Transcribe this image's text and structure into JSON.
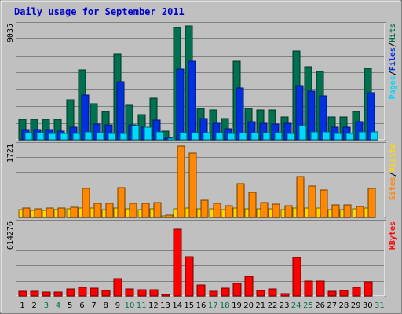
{
  "title": "Daily usage for September 2011",
  "colors": {
    "background": "#c0c0c0",
    "title": "#0000cc",
    "hits": "#007050",
    "files": "#0030e0",
    "pages": "#00d8ff",
    "visits": "#ffd800",
    "sites": "#ff8800",
    "kbytes": "#ff0000",
    "weekend_label": "#007050",
    "weekday_label": "#000000"
  },
  "chart_data": [
    {
      "type": "bar",
      "panel": "hits-files-pages",
      "ymax_label": "9035",
      "ymax": 9035,
      "legend": [
        {
          "key": "pages",
          "label": "Pages"
        },
        {
          "key": "sep1",
          "label": "/"
        },
        {
          "key": "files",
          "label": "Files"
        },
        {
          "key": "sep2",
          "label": "/"
        },
        {
          "key": "hits",
          "label": "Hits"
        }
      ],
      "categories": [
        "1",
        "2",
        "3",
        "4",
        "5",
        "6",
        "7",
        "8",
        "9",
        "10",
        "11",
        "12",
        "13",
        "14",
        "15",
        "16",
        "17",
        "18",
        "19",
        "20",
        "21",
        "22",
        "23",
        "24",
        "25",
        "26",
        "27",
        "28",
        "29",
        "30",
        "31"
      ],
      "series": [
        {
          "key": "hits",
          "values": [
            1630,
            1630,
            1630,
            1630,
            3140,
            5490,
            2820,
            2250,
            6730,
            2750,
            2010,
            3270,
            700,
            8860,
            9000,
            2450,
            2380,
            1690,
            6190,
            2490,
            2380,
            2380,
            1800,
            7000,
            5740,
            5360,
            1810,
            1810,
            2250,
            5620,
            0
          ]
        },
        {
          "key": "files",
          "values": [
            790,
            790,
            790,
            700,
            1000,
            3530,
            1230,
            1190,
            4590,
            1190,
            1000,
            1570,
            170,
            5570,
            6190,
            1690,
            1320,
            850,
            4060,
            1410,
            1310,
            1230,
            1320,
            4260,
            3810,
            3470,
            960,
            960,
            1410,
            3700,
            0
          ]
        },
        {
          "key": "pages",
          "values": [
            540,
            540,
            480,
            480,
            480,
            610,
            540,
            520,
            520,
            1140,
            990,
            610,
            130,
            540,
            540,
            540,
            540,
            480,
            540,
            540,
            540,
            540,
            520,
            1140,
            610,
            610,
            480,
            480,
            610,
            610,
            0
          ]
        }
      ]
    },
    {
      "type": "bar",
      "panel": "visits-sites",
      "ymax_label": "1721",
      "ymax": 1721,
      "legend": [
        {
          "key": "sites",
          "label": "Sites"
        },
        {
          "key": "sep1",
          "label": "/"
        },
        {
          "key": "visits",
          "label": "Visits"
        }
      ],
      "categories": [
        "1",
        "2",
        "3",
        "4",
        "5",
        "6",
        "7",
        "8",
        "9",
        "10",
        "11",
        "12",
        "13",
        "14",
        "15",
        "16",
        "17",
        "18",
        "19",
        "20",
        "21",
        "22",
        "23",
        "24",
        "25",
        "26",
        "27",
        "28",
        "29",
        "30",
        "31"
      ],
      "series": [
        {
          "key": "visits",
          "values": [
            180,
            170,
            170,
            180,
            200,
            230,
            220,
            190,
            220,
            200,
            190,
            200,
            40,
            210,
            220,
            210,
            210,
            190,
            220,
            210,
            210,
            200,
            190,
            220,
            230,
            220,
            190,
            190,
            210,
            220,
            0
          ]
        },
        {
          "key": "sites",
          "values": [
            230,
            200,
            220,
            230,
            250,
            690,
            340,
            330,
            720,
            340,
            330,
            360,
            60,
            1700,
            1530,
            420,
            340,
            280,
            800,
            590,
            360,
            310,
            280,
            980,
            740,
            650,
            290,
            290,
            260,
            700,
            0
          ]
        }
      ]
    },
    {
      "type": "bar",
      "panel": "kbytes",
      "ymax_label": "614276",
      "ymax": 614276,
      "legend": [
        {
          "key": "kbytes",
          "label": "KBytes"
        }
      ],
      "categories": [
        "1",
        "2",
        "3",
        "4",
        "5",
        "6",
        "7",
        "8",
        "9",
        "10",
        "11",
        "12",
        "13",
        "14",
        "15",
        "16",
        "17",
        "18",
        "19",
        "20",
        "21",
        "22",
        "23",
        "24",
        "25",
        "26",
        "27",
        "28",
        "29",
        "30",
        "31"
      ],
      "series": [
        {
          "key": "kbytes",
          "values": [
            40000,
            40000,
            36000,
            36000,
            58000,
            72000,
            67000,
            49000,
            148000,
            58000,
            54000,
            54000,
            10000,
            560000,
            333000,
            90000,
            40000,
            67000,
            103000,
            162000,
            45000,
            58000,
            22000,
            324000,
            126000,
            126000,
            40000,
            49000,
            72000,
            121000,
            0
          ]
        }
      ]
    }
  ],
  "x_axis": {
    "labels": [
      "1",
      "2",
      "3",
      "4",
      "5",
      "6",
      "7",
      "8",
      "9",
      "10",
      "11",
      "12",
      "13",
      "14",
      "15",
      "16",
      "17",
      "18",
      "19",
      "20",
      "21",
      "22",
      "23",
      "24",
      "25",
      "26",
      "27",
      "28",
      "29",
      "30",
      "31"
    ],
    "weekend": [
      3,
      4,
      10,
      11,
      17,
      18,
      24,
      25,
      31
    ]
  }
}
